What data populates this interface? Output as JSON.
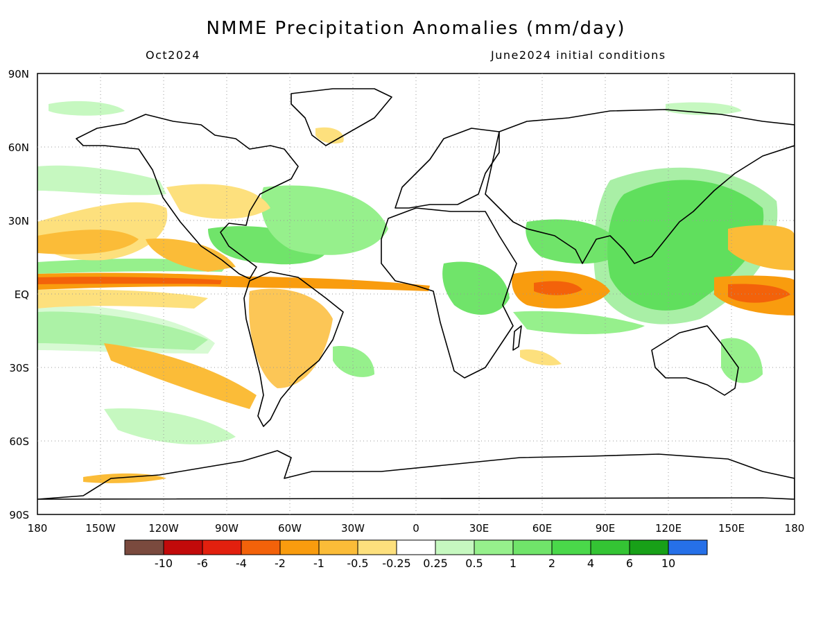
{
  "title": "NMME Precipitation Anomalies (mm/day)",
  "subtitle_left": "Oct2024",
  "subtitle_right": "June2024 initial conditions",
  "lat_ticks": [
    "90N",
    "60N",
    "30N",
    "EQ",
    "30S",
    "60S",
    "90S"
  ],
  "lon_ticks": [
    "180",
    "150W",
    "120W",
    "90W",
    "60W",
    "30W",
    "0",
    "30E",
    "60E",
    "90E",
    "120E",
    "150E",
    "180"
  ],
  "colorbar": {
    "colors": [
      "#7a4a3e",
      "#c20a0a",
      "#e2200e",
      "#f3620a",
      "#f99c0e",
      "#fbbc38",
      "#fde07d",
      "#ffffff",
      "#c6f8c0",
      "#96f08c",
      "#70e46a",
      "#4ad84a",
      "#34c434",
      "#18a018",
      "#2670e8"
    ],
    "labels": [
      "-10",
      "-6",
      "-4",
      "-2",
      "-1",
      "-0.5",
      "-0.25",
      "0.25",
      "0.5",
      "1",
      "2",
      "4",
      "6",
      "10"
    ]
  },
  "legend_hidden_note": "",
  "map_elements": {
    "land_outline_color": "#000000",
    "grid_color": "#888888"
  }
}
